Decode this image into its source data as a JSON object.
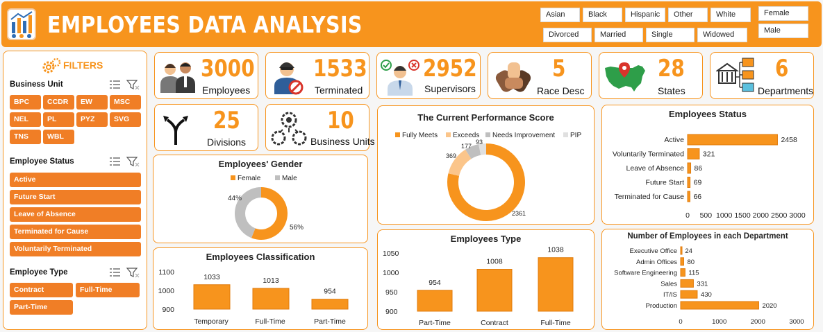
{
  "header": {
    "title": "EMPLOYEES DATA ANALYSIS",
    "race_slicer": [
      "Asian",
      "Black",
      "Hispanic",
      "Other",
      "White"
    ],
    "marital_slicer": [
      "Divorced",
      "Married",
      "Single",
      "Widowed"
    ],
    "gender_slicer": [
      "Female",
      "Male"
    ]
  },
  "filters": {
    "title": "FILTERS",
    "business_unit": {
      "label": "Business Unit",
      "items": [
        "BPC",
        "CCDR",
        "EW",
        "MSC",
        "NEL",
        "PL",
        "PYZ",
        "SVG",
        "TNS",
        "WBL"
      ]
    },
    "employee_status": {
      "label": "Employee Status",
      "items": [
        "Active",
        "Future Start",
        "Leave of Absence",
        "Terminated for Cause",
        "Voluntarily Terminated"
      ]
    },
    "employee_type": {
      "label": "Employee Type",
      "items": [
        "Contract",
        "Full-Time",
        "Part-Time"
      ]
    }
  },
  "kpis": {
    "employees": {
      "value": "3000",
      "label": "Employees"
    },
    "terminated": {
      "value": "1533",
      "label": "Terminated"
    },
    "supervisors": {
      "value": "2952",
      "label": "Supervisors"
    },
    "race": {
      "value": "5",
      "label": "Race Desc"
    },
    "states": {
      "value": "28",
      "label": "States"
    },
    "departments": {
      "value": "6",
      "label": "Departments"
    },
    "divisions": {
      "value": "25",
      "label": "Divisions"
    },
    "business_units": {
      "value": "10",
      "label": "Business Units"
    }
  },
  "colors": {
    "accent": "#f7941d",
    "light": "#fbc58a",
    "grey": "#bfbfbf",
    "lightgrey": "#e0e0e0"
  },
  "chart_data": [
    {
      "id": "performance",
      "type": "pie",
      "title": "The Current Performance Score",
      "categories": [
        "Fully Meets",
        "Exceeds",
        "Needs Improvement",
        "PIP"
      ],
      "values": [
        2361,
        369,
        177,
        93
      ],
      "legend": "top"
    },
    {
      "id": "gender",
      "type": "pie",
      "title": "Employees' Gender",
      "categories": [
        "Female",
        "Male"
      ],
      "values": [
        56,
        44
      ],
      "labels": [
        "56%",
        "44%"
      ],
      "legend": "top"
    },
    {
      "id": "status",
      "type": "bar",
      "orientation": "horizontal",
      "title": "Employees Status",
      "categories": [
        "Active",
        "Voluntarily Terminated",
        "Leave of Absence",
        "Future Start",
        "Terminated for Cause"
      ],
      "values": [
        2458,
        321,
        86,
        69,
        66
      ],
      "xlim": [
        0,
        3000
      ],
      "ticks": [
        0,
        500,
        1000,
        1500,
        2000,
        2500,
        3000
      ]
    },
    {
      "id": "classification",
      "type": "bar",
      "title": "Employees Classification",
      "categories": [
        "Temporary",
        "Full-Time",
        "Part-Time"
      ],
      "values": [
        1033,
        1013,
        954
      ],
      "ylim": [
        900,
        1100
      ],
      "ticks": [
        900,
        1000,
        1100
      ]
    },
    {
      "id": "type",
      "type": "bar",
      "title": "Employees Type",
      "categories": [
        "Part-Time",
        "Contract",
        "Full-Time"
      ],
      "values": [
        954,
        1008,
        1038
      ],
      "ylim": [
        900,
        1050
      ],
      "ticks": [
        900,
        950,
        1000,
        1050
      ]
    },
    {
      "id": "department",
      "type": "bar",
      "orientation": "horizontal",
      "title": "Number of Employees in each Department",
      "categories": [
        "Executive Office",
        "Admin Offices",
        "Software Engineering",
        "Sales",
        "IT/IS",
        "Production"
      ],
      "values": [
        24,
        80,
        115,
        331,
        430,
        2020
      ],
      "xlim": [
        0,
        3000
      ],
      "ticks": [
        0,
        1000,
        2000,
        3000
      ]
    }
  ]
}
